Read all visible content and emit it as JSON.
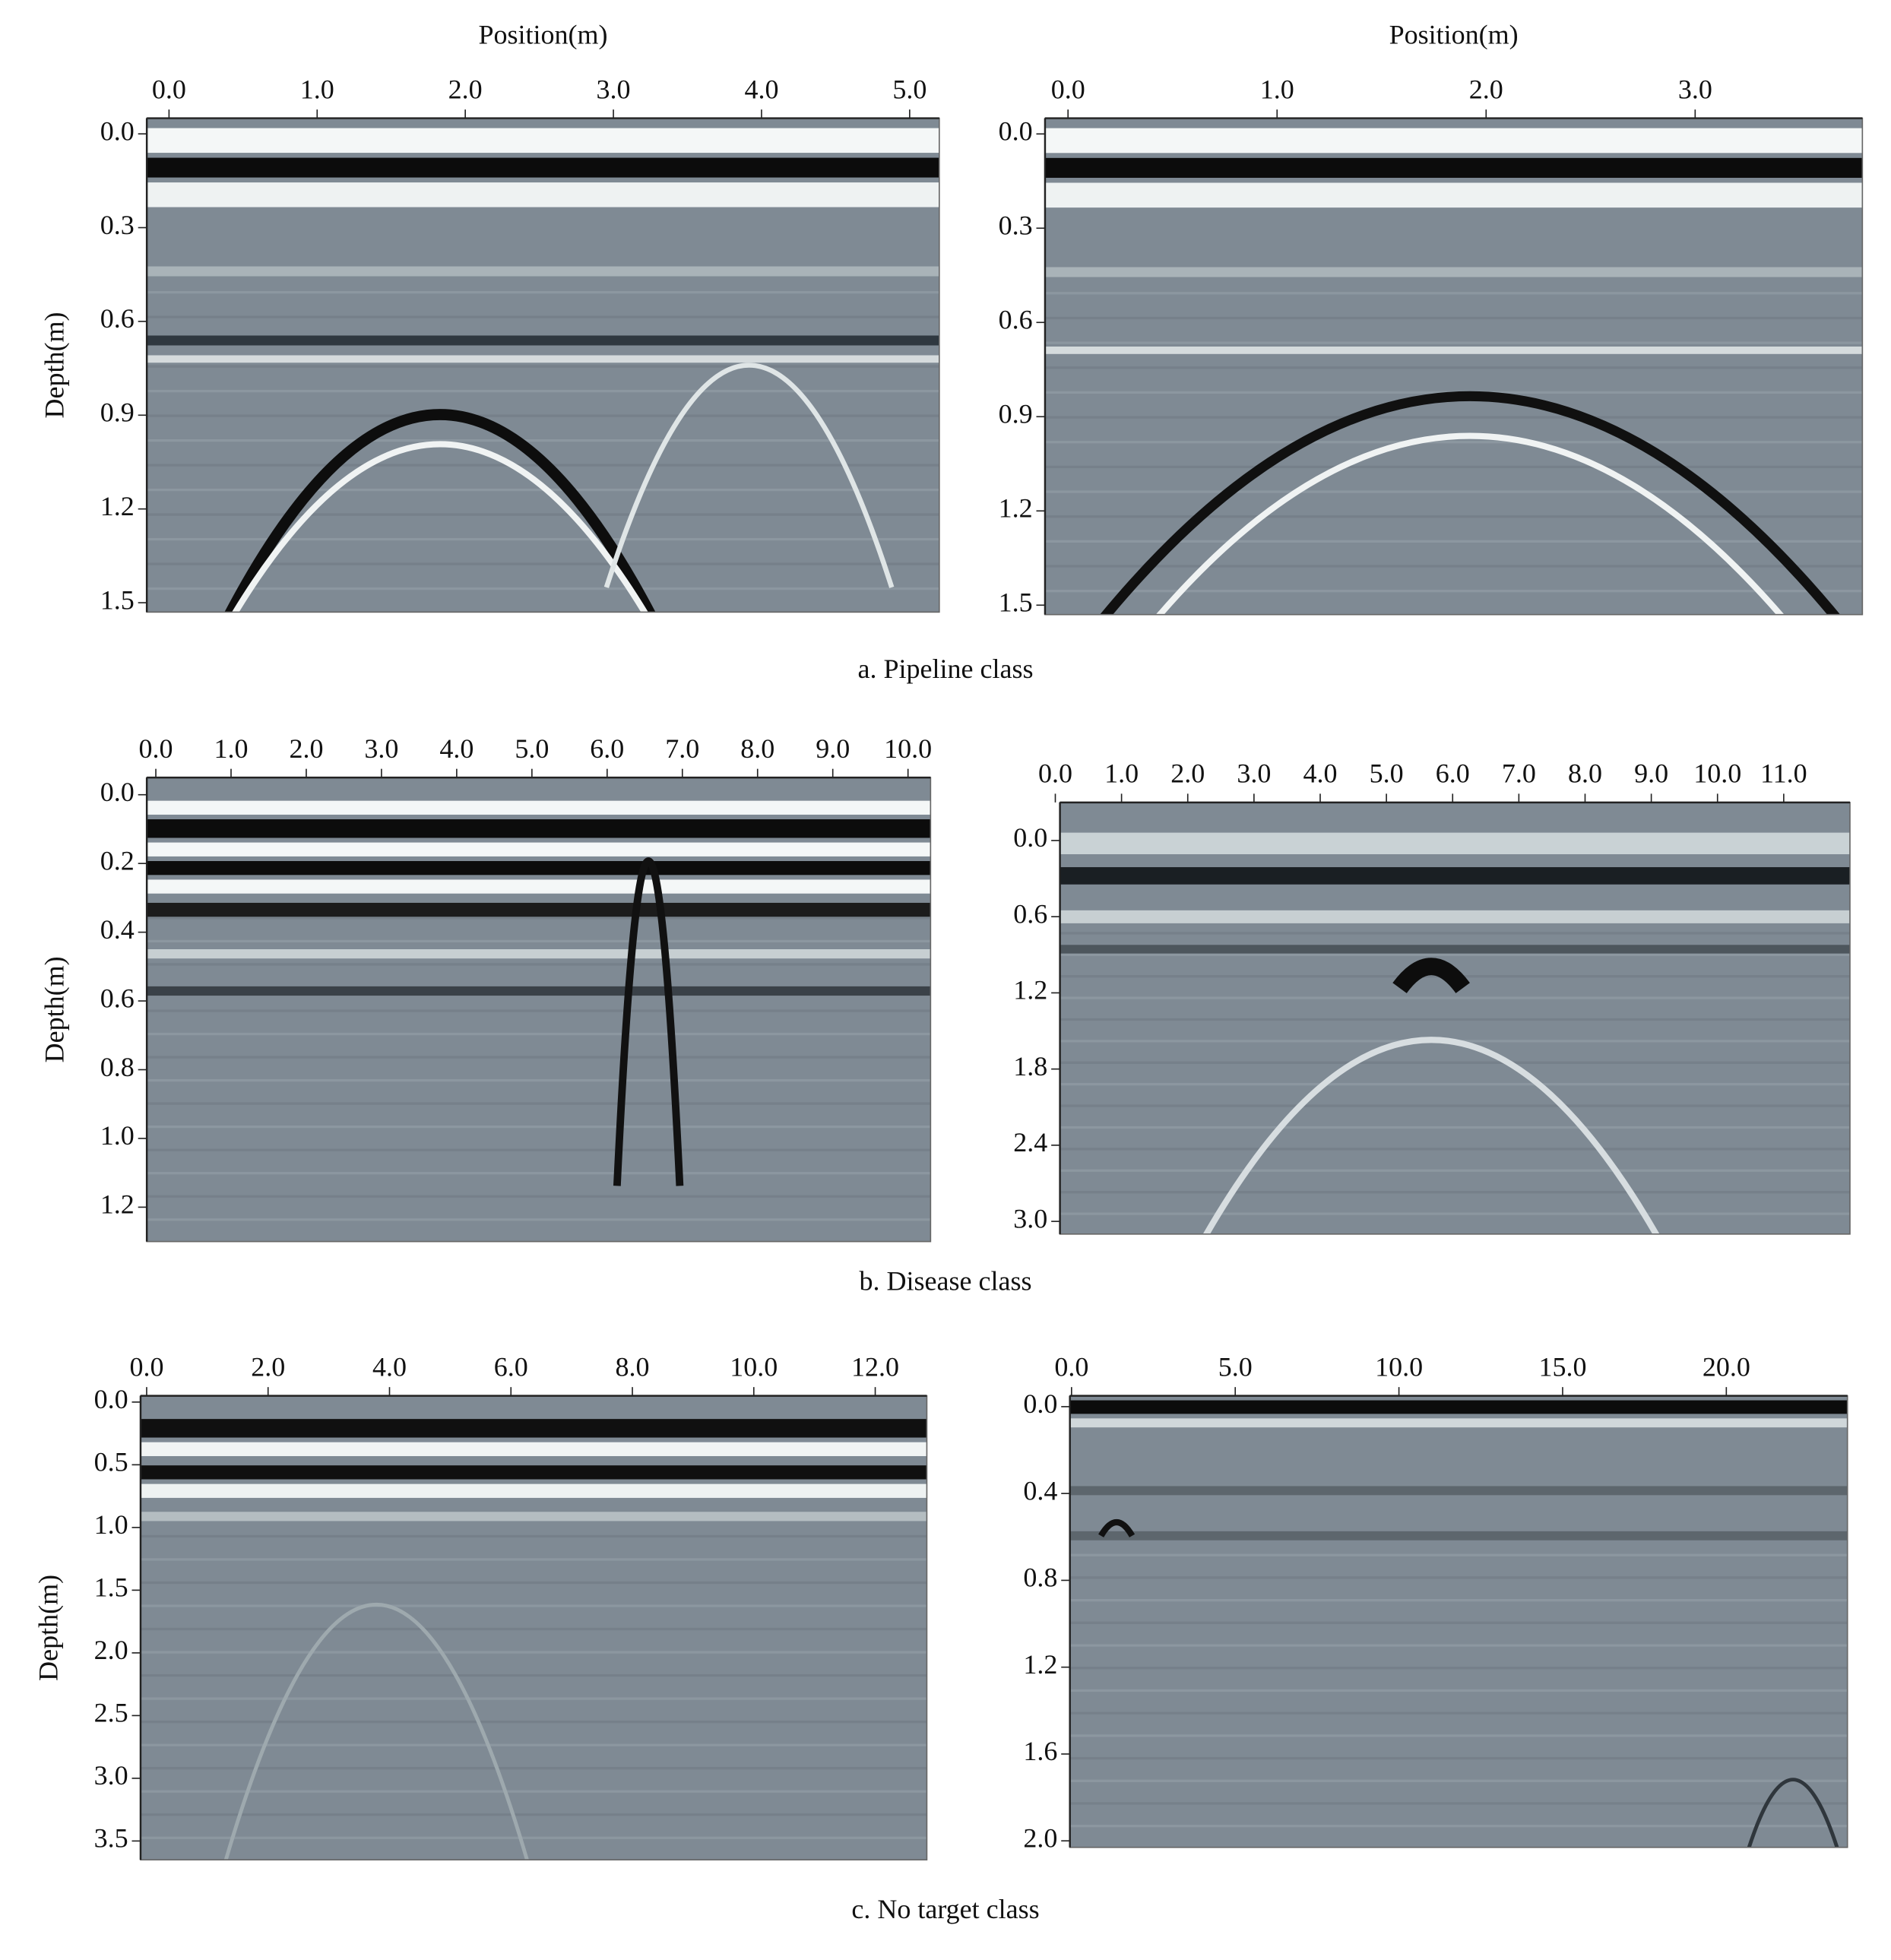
{
  "chart_data": [
    {
      "type": "image",
      "x_label": "Position(m)",
      "y_label": "Depth(m)",
      "xlim": [
        -0.15,
        5.2
      ],
      "ylim": [
        -0.05,
        1.53
      ],
      "xticks": [
        {
          "value": 0,
          "label": "0.0"
        },
        {
          "value": 1,
          "label": "1.0"
        },
        {
          "value": 2,
          "label": "2.0"
        },
        {
          "value": 3,
          "label": "3.0"
        },
        {
          "value": 4,
          "label": "4.0"
        },
        {
          "value": 5,
          "label": "5.0"
        }
      ],
      "yticks": [
        {
          "value": 0,
          "label": "0.0"
        },
        {
          "value": 0.3,
          "label": "0.3"
        },
        {
          "value": 0.6,
          "label": "0.6"
        },
        {
          "value": 0.9,
          "label": "0.9"
        },
        {
          "value": 1.2,
          "label": "1.2"
        },
        {
          "value": 1.5,
          "label": "1.5"
        }
      ]
    },
    {
      "type": "image",
      "x_label": "Position(m)",
      "xlim": [
        -0.11,
        3.8
      ],
      "ylim": [
        -0.05,
        1.53
      ],
      "xticks": [
        {
          "value": 0,
          "label": "0.0"
        },
        {
          "value": 1,
          "label": "1.0"
        },
        {
          "value": 2,
          "label": "2.0"
        },
        {
          "value": 3,
          "label": "3.0"
        }
      ],
      "yticks": [
        {
          "value": 0,
          "label": "0.0"
        },
        {
          "value": 0.3,
          "label": "0.3"
        },
        {
          "value": 0.6,
          "label": "0.6"
        },
        {
          "value": 0.9,
          "label": "0.9"
        },
        {
          "value": 1.2,
          "label": "1.2"
        },
        {
          "value": 1.5,
          "label": "1.5"
        }
      ]
    },
    {
      "type": "image",
      "y_label": "Depth(m)",
      "xlim": [
        -0.12,
        10.3
      ],
      "ylim": [
        -0.05,
        1.3
      ],
      "xticks": [
        {
          "value": 0,
          "label": "0.0"
        },
        {
          "value": 1,
          "label": "1.0"
        },
        {
          "value": 2,
          "label": "2.0"
        },
        {
          "value": 3,
          "label": "3.0"
        },
        {
          "value": 4,
          "label": "4.0"
        },
        {
          "value": 5,
          "label": "5.0"
        },
        {
          "value": 6,
          "label": "6.0"
        },
        {
          "value": 7,
          "label": "7.0"
        },
        {
          "value": 8,
          "label": "8.0"
        },
        {
          "value": 9,
          "label": "9.0"
        },
        {
          "value": 10,
          "label": "10.0"
        }
      ],
      "yticks": [
        {
          "value": 0,
          "label": "0.0"
        },
        0.2,
        0.4,
        0.6,
        0.8,
        {
          "value": 1,
          "label": "1.0"
        },
        1.2
      ]
    },
    {
      "type": "image",
      "xlim": [
        0.07,
        12.0
      ],
      "ylim": [
        -0.3,
        3.1
      ],
      "xticks": [
        {
          "value": 0,
          "label": "0.0"
        },
        {
          "value": 1,
          "label": "1.0"
        },
        {
          "value": 2,
          "label": "2.0"
        },
        {
          "value": 3,
          "label": "3.0"
        },
        {
          "value": 4,
          "label": "4.0"
        },
        {
          "value": 5,
          "label": "5.0"
        },
        {
          "value": 6,
          "label": "6.0"
        },
        {
          "value": 7,
          "label": "7.0"
        },
        {
          "value": 8,
          "label": "8.0"
        },
        {
          "value": 9,
          "label": "9.0"
        },
        {
          "value": 10,
          "label": "10.0"
        },
        {
          "value": 11,
          "label": "11.0"
        }
      ],
      "yticks": [
        {
          "value": 0,
          "label": "0.0"
        },
        0.6,
        1.2,
        1.8,
        2.4,
        {
          "value": 3,
          "label": "3.0"
        }
      ]
    },
    {
      "type": "image",
      "y_label": "Depth(m)",
      "xlim": [
        -0.1,
        12.85
      ],
      "ylim": [
        -0.05,
        3.65
      ],
      "xticks": [
        {
          "value": 0,
          "label": "0.0"
        },
        {
          "value": 2,
          "label": "2.0"
        },
        {
          "value": 4,
          "label": "4.0"
        },
        {
          "value": 6,
          "label": "6.0"
        },
        {
          "value": 8,
          "label": "8.0"
        },
        {
          "value": 10,
          "label": "10.0"
        },
        {
          "value": 12,
          "label": "12.0"
        }
      ],
      "yticks": [
        {
          "value": 0,
          "label": "0.0"
        },
        0.5,
        {
          "value": 1,
          "label": "1.0"
        },
        1.5,
        {
          "value": 2,
          "label": "2.0"
        },
        2.5,
        {
          "value": 3,
          "label": "3.0"
        },
        3.5
      ]
    },
    {
      "type": "image",
      "xlim": [
        -0.05,
        23.7
      ],
      "ylim": [
        -0.05,
        2.03
      ],
      "xticks": [
        {
          "value": 0,
          "label": "0.0"
        },
        {
          "value": 5,
          "label": "5.0"
        },
        {
          "value": 10,
          "label": "10.0"
        },
        {
          "value": 15,
          "label": "15.0"
        },
        {
          "value": 20,
          "label": "20.0"
        }
      ],
      "yticks": [
        {
          "value": 0,
          "label": "0.0"
        },
        0.4,
        0.8,
        1.2,
        1.6,
        {
          "value": 2,
          "label": "2.0"
        }
      ]
    }
  ],
  "captions": [
    "a.  Pipeline class",
    "b.  Disease class",
    "c.  No target class"
  ]
}
